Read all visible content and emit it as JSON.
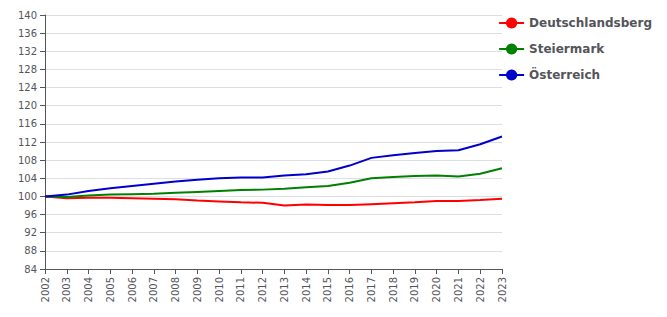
{
  "chart_data": {
    "type": "line",
    "x": [
      2002,
      2003,
      2004,
      2005,
      2006,
      2007,
      2008,
      2009,
      2010,
      2011,
      2012,
      2013,
      2014,
      2015,
      2016,
      2017,
      2018,
      2019,
      2020,
      2021,
      2022,
      2023
    ],
    "series": [
      {
        "name": "Deutschlandsberg",
        "color": "#ff0000",
        "values": [
          100.0,
          99.6,
          99.7,
          99.7,
          99.6,
          99.5,
          99.4,
          99.1,
          98.9,
          98.7,
          98.6,
          98.0,
          98.2,
          98.1,
          98.1,
          98.3,
          98.5,
          98.7,
          99.0,
          99.0,
          99.2,
          99.5
        ]
      },
      {
        "name": "Steiermark",
        "color": "#008000",
        "values": [
          100.0,
          99.9,
          100.2,
          100.4,
          100.5,
          100.6,
          100.8,
          101.0,
          101.2,
          101.4,
          101.5,
          101.7,
          102.0,
          102.3,
          103.0,
          104.0,
          104.3,
          104.5,
          104.6,
          104.4,
          105.0,
          106.2
        ]
      },
      {
        "name": "Österreich",
        "color": "#0000cd",
        "values": [
          100.0,
          100.4,
          101.2,
          101.8,
          102.3,
          102.8,
          103.3,
          103.7,
          104.0,
          104.2,
          104.2,
          104.6,
          104.9,
          105.5,
          106.8,
          108.5,
          109.1,
          109.6,
          110.0,
          110.2,
          111.5,
          113.2
        ]
      }
    ],
    "xlim": [
      2002,
      2023
    ],
    "xticks": [
      2002,
      2003,
      2004,
      2005,
      2006,
      2007,
      2008,
      2009,
      2010,
      2011,
      2012,
      2013,
      2014,
      2015,
      2016,
      2017,
      2018,
      2019,
      2020,
      2021,
      2022,
      2023
    ],
    "ylim": [
      84,
      140
    ],
    "yticks": [
      84,
      88,
      92,
      96,
      100,
      104,
      108,
      112,
      116,
      120,
      124,
      128,
      132,
      136,
      140
    ],
    "grid": true,
    "legend": "right"
  }
}
